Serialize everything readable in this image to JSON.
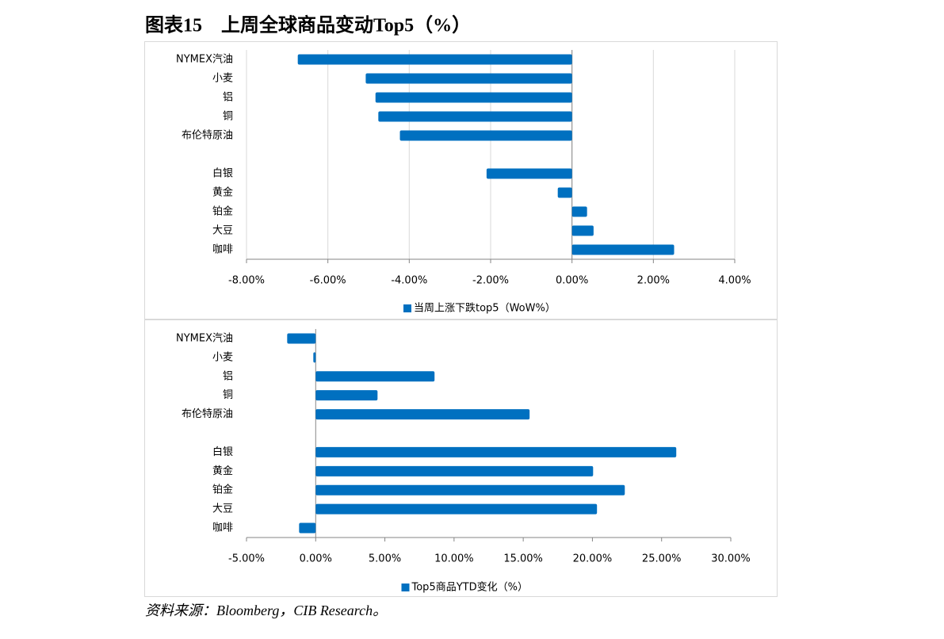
{
  "header": {
    "title": "图表15　上周全球商品变动Top5（%）"
  },
  "footer": {
    "source": "资料来源：Bloomberg，CIB Research。"
  },
  "chart_data": [
    {
      "type": "barh",
      "categories": [
        "NYMEX汽油",
        "小麦",
        "铝",
        "铜",
        "布伦特原油",
        null,
        "白银",
        "黄金",
        "铂金",
        "大豆",
        "咖啡"
      ],
      "series": [
        {
          "name": "当周上涨下跌top5（WoW%）",
          "color": "#0070c0",
          "values": [
            -6.74,
            -5.07,
            -4.83,
            -4.76,
            -4.23,
            null,
            -2.1,
            -0.35,
            0.37,
            0.53,
            2.51
          ]
        }
      ],
      "xlim": [
        -8,
        4
      ],
      "xticks": [
        {
          "value": -8,
          "label": "-8.00%"
        },
        {
          "value": -6,
          "label": "-6.00%"
        },
        {
          "value": -4,
          "label": "-4.00%"
        },
        {
          "value": -2,
          "label": "-2.00%"
        },
        {
          "value": 0,
          "label": "0.00%"
        },
        {
          "value": 2,
          "label": "2.00%"
        },
        {
          "value": 4,
          "label": "4.00%"
        }
      ],
      "grid": true,
      "legend": "bottom"
    },
    {
      "type": "barh",
      "categories": [
        "NYMEX汽油",
        "小麦",
        "铝",
        "铜",
        "布伦特原油",
        null,
        "白银",
        "黄金",
        "铂金",
        "大豆",
        "咖啡"
      ],
      "series": [
        {
          "name": "Top5商品YTD变化（%）",
          "color": "#0070c0",
          "values": [
            -2.06,
            -0.17,
            8.59,
            4.47,
            15.46,
            null,
            26.06,
            20.05,
            22.34,
            20.33,
            -1.2
          ]
        }
      ],
      "xlim": [
        -5,
        30
      ],
      "xticks": [
        {
          "value": -5,
          "label": "-5.00%"
        },
        {
          "value": 0,
          "label": "0.00%"
        },
        {
          "value": 5,
          "label": "5.00%"
        },
        {
          "value": 10,
          "label": "10.00%"
        },
        {
          "value": 15,
          "label": "15.00%"
        },
        {
          "value": 20,
          "label": "20.00%"
        },
        {
          "value": 25,
          "label": "25.00%"
        },
        {
          "value": 30,
          "label": "30.00%"
        }
      ],
      "grid": false,
      "legend": "bottom"
    }
  ]
}
